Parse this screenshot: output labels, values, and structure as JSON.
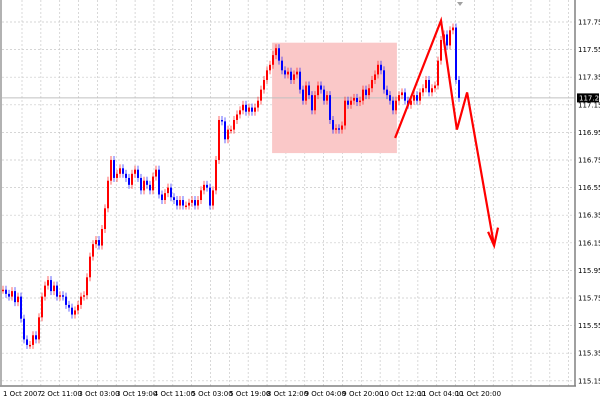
{
  "chart_data": {
    "type": "candlestick",
    "title": "",
    "xlabel": "",
    "ylabel": "",
    "ylim": [
      115.09,
      117.86
    ],
    "grid": true,
    "colors": {
      "up": "#ff0000",
      "down": "#0000ff",
      "annotation": "#ff0000",
      "zone": "#fac8c8",
      "price_line": "#c0c0c0"
    },
    "x_tick_labels": [
      "1 Oct 2007",
      "2 Oct 11:00",
      "3 Oct 03:00",
      "3 Oct 19:00",
      "4 Oct 11:00",
      "5 Oct 03:00",
      "5 Oct 19:00",
      "8 Oct 12:00",
      "9 Oct 04:00",
      "9 Oct 20:00",
      "10 Oct 12:00",
      "11 Oct 04:00",
      "11 Oct 20:00"
    ],
    "y_tick_labels": [
      "117.75",
      "117.55",
      "117.35",
      "117.15",
      "116.95",
      "116.75",
      "116.55",
      "116.35",
      "116.15",
      "115.95",
      "115.75",
      "115.55",
      "115.35",
      "115.15"
    ],
    "current_price": "117.20",
    "close": [
      115.81,
      115.78,
      115.76,
      115.8,
      115.72,
      115.76,
      115.6,
      115.45,
      115.41,
      115.41,
      115.48,
      115.45,
      115.61,
      115.76,
      115.84,
      115.88,
      115.8,
      115.84,
      115.76,
      115.77,
      115.76,
      115.7,
      115.68,
      115.63,
      115.66,
      115.7,
      115.76,
      115.77,
      115.9,
      116.05,
      116.14,
      116.17,
      116.13,
      116.25,
      116.4,
      116.6,
      116.75,
      116.62,
      116.65,
      116.69,
      116.65,
      116.62,
      116.57,
      116.65,
      116.68,
      116.62,
      116.53,
      116.6,
      116.57,
      116.53,
      116.63,
      116.68,
      116.5,
      116.46,
      116.51,
      116.55,
      116.48,
      116.46,
      116.42,
      116.46,
      116.42,
      116.42,
      116.44,
      116.46,
      116.42,
      116.46,
      116.53,
      116.57,
      116.55,
      116.42,
      116.53,
      116.75,
      117.04,
      117.03,
      116.9,
      116.97,
      116.97,
      117.04,
      117.08,
      117.11,
      117.15,
      117.1,
      117.13,
      117.1,
      117.13,
      117.18,
      117.26,
      117.33,
      117.4,
      117.44,
      117.51,
      117.56,
      117.47,
      117.4,
      117.37,
      117.39,
      117.33,
      117.37,
      117.39,
      117.26,
      117.18,
      117.29,
      117.22,
      117.11,
      117.22,
      117.29,
      117.26,
      117.18,
      117.22,
      117.04,
      116.97,
      116.98,
      116.97,
      117.0,
      117.18,
      117.15,
      117.18,
      117.2,
      117.17,
      117.18,
      117.26,
      117.22,
      117.27,
      117.33,
      117.37,
      117.44,
      117.4,
      117.26,
      117.22,
      117.18,
      117.11,
      117.18,
      117.22,
      117.24,
      117.18,
      117.15,
      117.18,
      117.22,
      117.18,
      117.24,
      117.27,
      117.33,
      117.24,
      117.27,
      117.29,
      117.47,
      117.62,
      117.66,
      117.58,
      117.69,
      117.71,
      117.33,
      117.2
    ],
    "annotations": {
      "rectangle": {
        "bar_from": 89.7,
        "bar_to": 131.3,
        "price_top": 117.6,
        "price_bottom": 116.8
      },
      "zigzag": [
        [
          130.7,
          116.91
        ],
        [
          146,
          117.76
        ],
        [
          151.3,
          116.97
        ],
        [
          154.7,
          117.24
        ],
        [
          163.7,
          116.13
        ]
      ],
      "arrowhead": [
        [
          161.7,
          116.23
        ],
        [
          163.7,
          116.13
        ],
        [
          165,
          116.26
        ]
      ]
    }
  }
}
